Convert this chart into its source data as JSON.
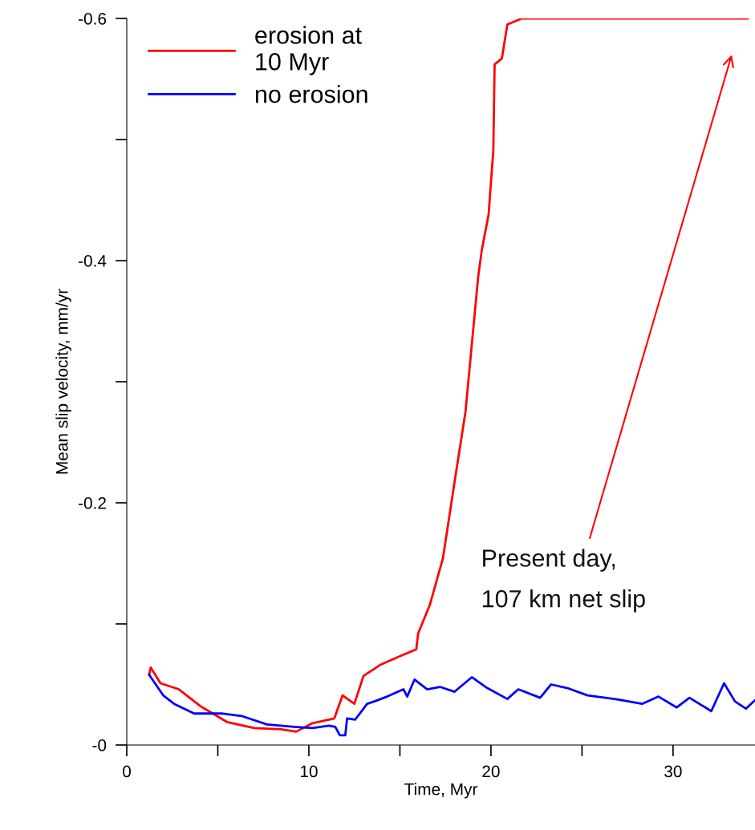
{
  "chart_data": {
    "type": "line",
    "xlabel": "Time, Myr",
    "ylabel": "Mean slip velocity, mm/yr",
    "xlim": [
      0,
      34.5
    ],
    "xticks": [
      0,
      {
        "value": 5,
        "label": null
      },
      10,
      {
        "value": 15,
        "label": null
      },
      20,
      {
        "value": 25,
        "label": null
      },
      30
    ],
    "ylim": [
      0,
      -0.6
    ],
    "yticks": [
      {
        "value": -0.6,
        "label": "-0.6"
      },
      {
        "value": -0.5,
        "label": null
      },
      {
        "value": -0.4,
        "label": "-0.4"
      },
      {
        "value": -0.3,
        "label": null
      },
      {
        "value": -0.2,
        "label": "-0.2"
      },
      {
        "value": -0.1,
        "label": null
      },
      {
        "value": 0,
        "label": "-0"
      }
    ],
    "grid": false,
    "legend": "top left",
    "marker": "none",
    "line_style": "solid",
    "series": [
      {
        "name": "erosion at\n10 Myr",
        "color": "#ff0000",
        "x": [
          1.23,
          1.32,
          1.85,
          2.86,
          4.05,
          5.5,
          7.0,
          8.46,
          9.3,
          10.2,
          11.4,
          11.85,
          12.5,
          13.0,
          13.9,
          15.1,
          15.9,
          16.0,
          16.65,
          17.36,
          18.0,
          18.6,
          18.95,
          19.3,
          19.5,
          19.87,
          20.13,
          20.2,
          20.6,
          20.9,
          21.7,
          34.1
        ],
        "values": [
          -0.058,
          -0.064,
          -0.051,
          -0.046,
          -0.032,
          -0.019,
          -0.014,
          -0.013,
          -0.011,
          -0.018,
          -0.022,
          -0.041,
          -0.034,
          -0.057,
          -0.066,
          -0.074,
          -0.079,
          -0.092,
          -0.116,
          -0.154,
          -0.217,
          -0.275,
          -0.331,
          -0.387,
          -0.409,
          -0.438,
          -0.491,
          -0.562,
          -0.567,
          -0.595,
          -0.6,
          -0.6
        ]
      },
      {
        "name": "no erosion",
        "color": "#0000ff",
        "x": [
          1.23,
          2.0,
          2.6,
          3.7,
          5.2,
          6.3,
          7.7,
          9.2,
          10.2,
          11.1,
          11.45,
          11.7,
          12.0,
          12.1,
          12.55,
          13.2,
          13.6,
          14.3,
          15.2,
          15.4,
          15.8,
          16.5,
          17.2,
          18.0,
          18.95,
          19.8,
          20.9,
          21.5,
          22.7,
          23.3,
          24.2,
          25.3,
          26.8,
          28.3,
          29.2,
          30.2,
          30.9,
          32.1,
          32.8,
          33.4,
          34.0,
          34.5
        ],
        "values": [
          -0.058,
          -0.041,
          -0.034,
          -0.026,
          -0.026,
          -0.024,
          -0.017,
          -0.015,
          -0.014,
          -0.016,
          -0.015,
          -0.008,
          -0.008,
          -0.022,
          -0.021,
          -0.034,
          -0.036,
          -0.04,
          -0.046,
          -0.04,
          -0.054,
          -0.046,
          -0.048,
          -0.044,
          -0.056,
          -0.047,
          -0.038,
          -0.046,
          -0.039,
          -0.05,
          -0.047,
          -0.041,
          -0.038,
          -0.034,
          -0.04,
          -0.031,
          -0.039,
          -0.028,
          -0.051,
          -0.036,
          -0.03,
          -0.037
        ]
      }
    ],
    "annotations": [
      "Present day,\n107 km net slip"
    ]
  }
}
